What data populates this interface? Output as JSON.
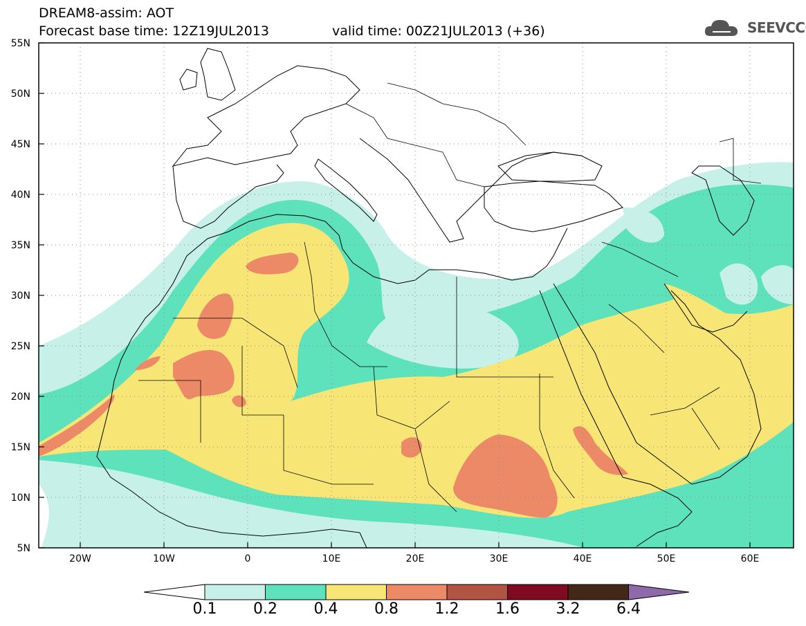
{
  "header": {
    "title_line1": "DREAM8-assim: AOT",
    "title_line2_left": "Forecast base time: 12Z19JUL2013",
    "title_line2_right": "valid time: 00Z21JUL2013 (+36)",
    "logo_text": "SEEVCCC"
  },
  "map": {
    "lon_ticks": [
      "20W",
      "10W",
      "0",
      "10E",
      "20E",
      "30E",
      "40E",
      "50E",
      "60E"
    ],
    "lat_ticks": [
      "55N",
      "50N",
      "45N",
      "40N",
      "35N",
      "30N",
      "25N",
      "20N",
      "15N",
      "10N",
      "5N"
    ],
    "lon_range": [
      -25,
      65
    ],
    "lat_range": [
      5,
      55
    ],
    "grid": "dotted"
  },
  "colorbar": {
    "levels": [
      "0.1",
      "0.2",
      "0.4",
      "0.8",
      "1.2",
      "1.6",
      "3.2",
      "6.4"
    ],
    "colors": [
      "#c6f0e8",
      "#5ee2bb",
      "#f7e676",
      "#ec8a68",
      "#b15443",
      "#800a1f",
      "#432818",
      "#8e6aaa"
    ]
  },
  "palette": {
    "c01": "#c6f0e8",
    "c02": "#5ee2bb",
    "c04": "#f7e676",
    "c08": "#ec8a68"
  }
}
